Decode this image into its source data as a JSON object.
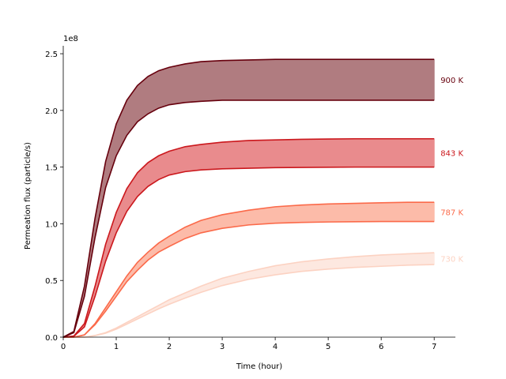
{
  "chart_data": {
    "type": "area",
    "title": "",
    "xlabel": "Time (hour)",
    "ylabel": "Permeation flux (particle/s)",
    "y_offset_label": "1e8",
    "y_scale": 100000000,
    "xlim": [
      0,
      7.4
    ],
    "ylim": [
      0,
      2.57
    ],
    "x_ticks": [
      0,
      1,
      2,
      3,
      4,
      5,
      6,
      7
    ],
    "x_tick_labels": [
      "0",
      "1",
      "2",
      "3",
      "4",
      "5",
      "6",
      "7"
    ],
    "y_ticks": [
      0,
      0.5,
      1.0,
      1.5,
      2.0,
      2.5
    ],
    "y_tick_labels": [
      "0.0",
      "0.5",
      "1.0",
      "1.5",
      "2.0",
      "2.5"
    ],
    "x": [
      0,
      0.2,
      0.4,
      0.6,
      0.8,
      1.0,
      1.2,
      1.4,
      1.6,
      1.8,
      2.0,
      2.3,
      2.6,
      3.0,
      3.5,
      4.0,
      4.5,
      5.0,
      5.5,
      6.0,
      6.5,
      7.0
    ],
    "series": [
      {
        "name": "900 K",
        "label": "900 K",
        "color": "#67000d",
        "fill": "#b07c80",
        "upper": [
          0,
          0.05,
          0.45,
          1.05,
          1.55,
          1.88,
          2.09,
          2.22,
          2.3,
          2.35,
          2.38,
          2.41,
          2.43,
          2.44,
          2.445,
          2.45,
          2.45,
          2.45,
          2.45,
          2.45,
          2.45,
          2.45
        ],
        "lower": [
          0,
          0.04,
          0.36,
          0.88,
          1.32,
          1.6,
          1.78,
          1.9,
          1.97,
          2.02,
          2.05,
          2.07,
          2.08,
          2.09,
          2.09,
          2.09,
          2.09,
          2.09,
          2.09,
          2.09,
          2.09,
          2.09
        ]
      },
      {
        "name": "843 K",
        "label": "843 K",
        "color": "#cb181d",
        "fill": "#e98b8d",
        "upper": [
          0,
          0.01,
          0.12,
          0.45,
          0.82,
          1.1,
          1.31,
          1.45,
          1.54,
          1.6,
          1.64,
          1.68,
          1.7,
          1.72,
          1.735,
          1.74,
          1.745,
          1.748,
          1.75,
          1.75,
          1.75,
          1.75
        ],
        "lower": [
          0,
          0.008,
          0.09,
          0.36,
          0.67,
          0.92,
          1.11,
          1.24,
          1.33,
          1.39,
          1.43,
          1.46,
          1.475,
          1.485,
          1.49,
          1.495,
          1.497,
          1.499,
          1.5,
          1.5,
          1.5,
          1.5
        ]
      },
      {
        "name": "787 K",
        "label": "787 K",
        "color": "#fb6a4a",
        "fill": "#fcbba9",
        "upper": [
          0,
          0,
          0.02,
          0.12,
          0.26,
          0.4,
          0.54,
          0.66,
          0.75,
          0.83,
          0.89,
          0.97,
          1.03,
          1.08,
          1.12,
          1.15,
          1.165,
          1.175,
          1.18,
          1.185,
          1.19,
          1.19
        ],
        "lower": [
          0,
          0,
          0.02,
          0.11,
          0.23,
          0.36,
          0.49,
          0.59,
          0.68,
          0.75,
          0.8,
          0.87,
          0.92,
          0.96,
          0.99,
          1.005,
          1.012,
          1.016,
          1.018,
          1.02,
          1.02,
          1.02
        ]
      },
      {
        "name": "730 K",
        "label": "730 K",
        "color": "#fcd2c2",
        "fill": "#fde8e0",
        "upper": [
          0,
          0,
          0,
          0.015,
          0.04,
          0.08,
          0.13,
          0.18,
          0.23,
          0.28,
          0.33,
          0.39,
          0.45,
          0.52,
          0.58,
          0.63,
          0.665,
          0.69,
          0.71,
          0.725,
          0.735,
          0.745
        ],
        "lower": [
          0,
          0,
          0,
          0.013,
          0.035,
          0.07,
          0.115,
          0.16,
          0.205,
          0.25,
          0.29,
          0.345,
          0.395,
          0.455,
          0.51,
          0.55,
          0.58,
          0.6,
          0.615,
          0.625,
          0.635,
          0.64
        ]
      }
    ]
  }
}
